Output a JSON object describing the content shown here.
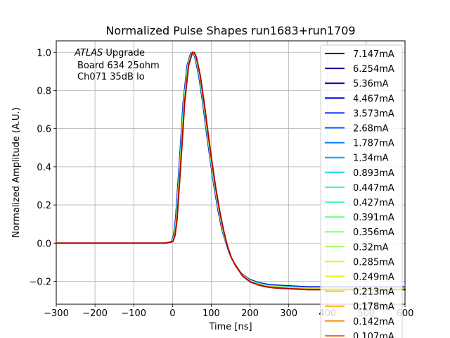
{
  "chart_data": {
    "type": "line",
    "title": "Normalized Pulse Shapes run1683+run1709",
    "xlabel": "Time [ns]",
    "ylabel": "Normalized Amplitude (A.U.)",
    "xlim": [
      -300,
      600
    ],
    "ylim": [
      -0.32,
      1.06
    ],
    "xticks": [
      -300,
      -200,
      -100,
      0,
      100,
      200,
      300,
      400,
      500,
      600
    ],
    "xtick_labels": [
      "−300",
      "−200",
      "−100",
      "0",
      "100",
      "200",
      "300",
      "400",
      "500",
      "600"
    ],
    "yticks": [
      -0.2,
      0.0,
      0.2,
      0.4,
      0.6,
      0.8,
      1.0
    ],
    "ytick_labels": [
      "−0.2",
      "0.0",
      "0.2",
      "0.4",
      "0.6",
      "0.8",
      "1.0"
    ],
    "grid": true,
    "legend_position": "right, overflowing bottom edge",
    "annotation": {
      "experiment": "ATLAS",
      "experiment_suffix": " Upgrade",
      "line2": "Board 634 25ohm",
      "line3": "Ch071 35dB lo"
    },
    "pulse_shape": {
      "x": [
        -300,
        -100,
        -20,
        -5,
        0,
        5,
        10,
        20,
        30,
        40,
        50,
        55,
        60,
        70,
        80,
        90,
        100,
        110,
        120,
        130,
        140,
        150,
        160,
        180,
        200,
        220,
        240,
        260,
        300,
        350,
        400,
        450,
        500,
        550,
        600
      ],
      "y": [
        0.0,
        0.0,
        0.0,
        0.005,
        0.01,
        0.04,
        0.12,
        0.42,
        0.74,
        0.93,
        1.0,
        0.998,
        0.975,
        0.88,
        0.74,
        0.58,
        0.43,
        0.29,
        0.17,
        0.07,
        -0.01,
        -0.07,
        -0.11,
        -0.17,
        -0.2,
        -0.215,
        -0.225,
        -0.23,
        -0.235,
        -0.24,
        -0.24,
        -0.24,
        -0.24,
        -0.24,
        -0.24
      ]
    },
    "series": [
      {
        "name": "7.147mA",
        "color": "#00007f"
      },
      {
        "name": "6.254mA",
        "color": "#00009f"
      },
      {
        "name": "5.36mA",
        "color": "#0000c1"
      },
      {
        "name": "4.467mA",
        "color": "#0000e2"
      },
      {
        "name": "3.573mA",
        "color": "#0030ff"
      },
      {
        "name": "2.68mA",
        "color": "#0058ff"
      },
      {
        "name": "1.787mA",
        "color": "#0080ff"
      },
      {
        "name": "1.34mA",
        "color": "#00a4ff"
      },
      {
        "name": "0.893mA",
        "color": "#1ad0e6"
      },
      {
        "name": "0.447mA",
        "color": "#34f0c6"
      },
      {
        "name": "0.427mA",
        "color": "#4cffac"
      },
      {
        "name": "0.391mA",
        "color": "#66ff90"
      },
      {
        "name": "0.356mA",
        "color": "#83ff73"
      },
      {
        "name": "0.32mA",
        "color": "#a0ff56"
      },
      {
        "name": "0.285mA",
        "color": "#beff39"
      },
      {
        "name": "0.249mA",
        "color": "#e4f21c"
      },
      {
        "name": "0.213mA",
        "color": "#ffd200"
      },
      {
        "name": "0.178mA",
        "color": "#ffb000"
      },
      {
        "name": "0.142mA",
        "color": "#ff8f00"
      },
      {
        "name": "0.107mA",
        "color": "#ff6d00"
      }
    ],
    "top_series_color": "#b20000"
  }
}
